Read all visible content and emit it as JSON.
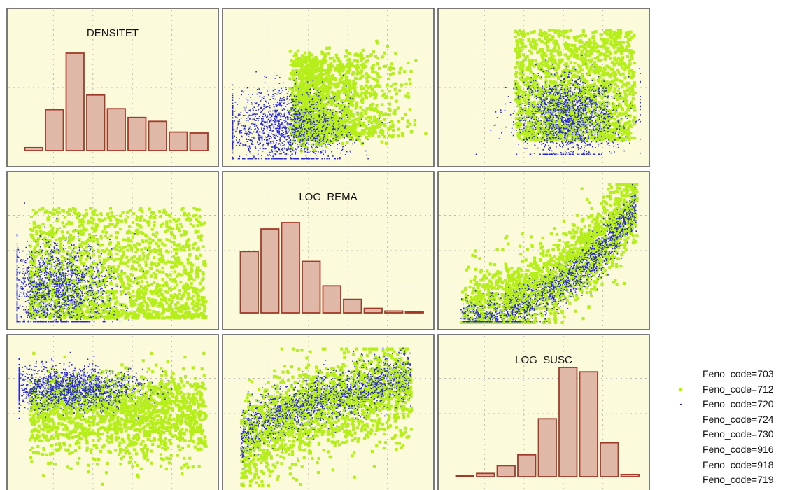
{
  "chart_data": {
    "type": "scatter",
    "variables": [
      "DENSITET",
      "LOG_REMA",
      "LOG_SUSC"
    ],
    "colors": {
      "712": "#b6ee1c",
      "720": "#2626d8",
      "bars_fill": "#dfb8a8",
      "bars_stroke": "#a23a2a",
      "panel": "#fbfbdc"
    },
    "grid": true,
    "diagonal_histograms": [
      {
        "variable": "DENSITET",
        "bin_heights": [
          0.03,
          0.42,
          1.0,
          0.57,
          0.43,
          0.34,
          0.3,
          0.19,
          0.18
        ]
      },
      {
        "variable": "LOG_REMA",
        "bin_heights": [
          0.68,
          0.93,
          1.0,
          0.57,
          0.3,
          0.15,
          0.05,
          0.02,
          0.01
        ]
      },
      {
        "variable": "LOG_SUSC",
        "bin_heights": [
          0.01,
          0.03,
          0.1,
          0.2,
          0.53,
          1.0,
          0.96,
          0.31,
          0.02
        ]
      }
    ],
    "legend": {
      "placement": "bottom-right",
      "entries": [
        {
          "label": "Feno_code=703",
          "marker": "none"
        },
        {
          "label": "Feno_code=712",
          "marker": "square",
          "color": "#b6ee1c"
        },
        {
          "label": "Feno_code=720",
          "marker": "dot",
          "color": "#2626d8"
        },
        {
          "label": "Feno_code=724",
          "marker": "none"
        },
        {
          "label": "Feno_code=730",
          "marker": "none"
        },
        {
          "label": "Feno_code=916",
          "marker": "none"
        },
        {
          "label": "Feno_code=918",
          "marker": "none"
        },
        {
          "label": "Feno_code=719",
          "marker": "none"
        }
      ]
    }
  }
}
